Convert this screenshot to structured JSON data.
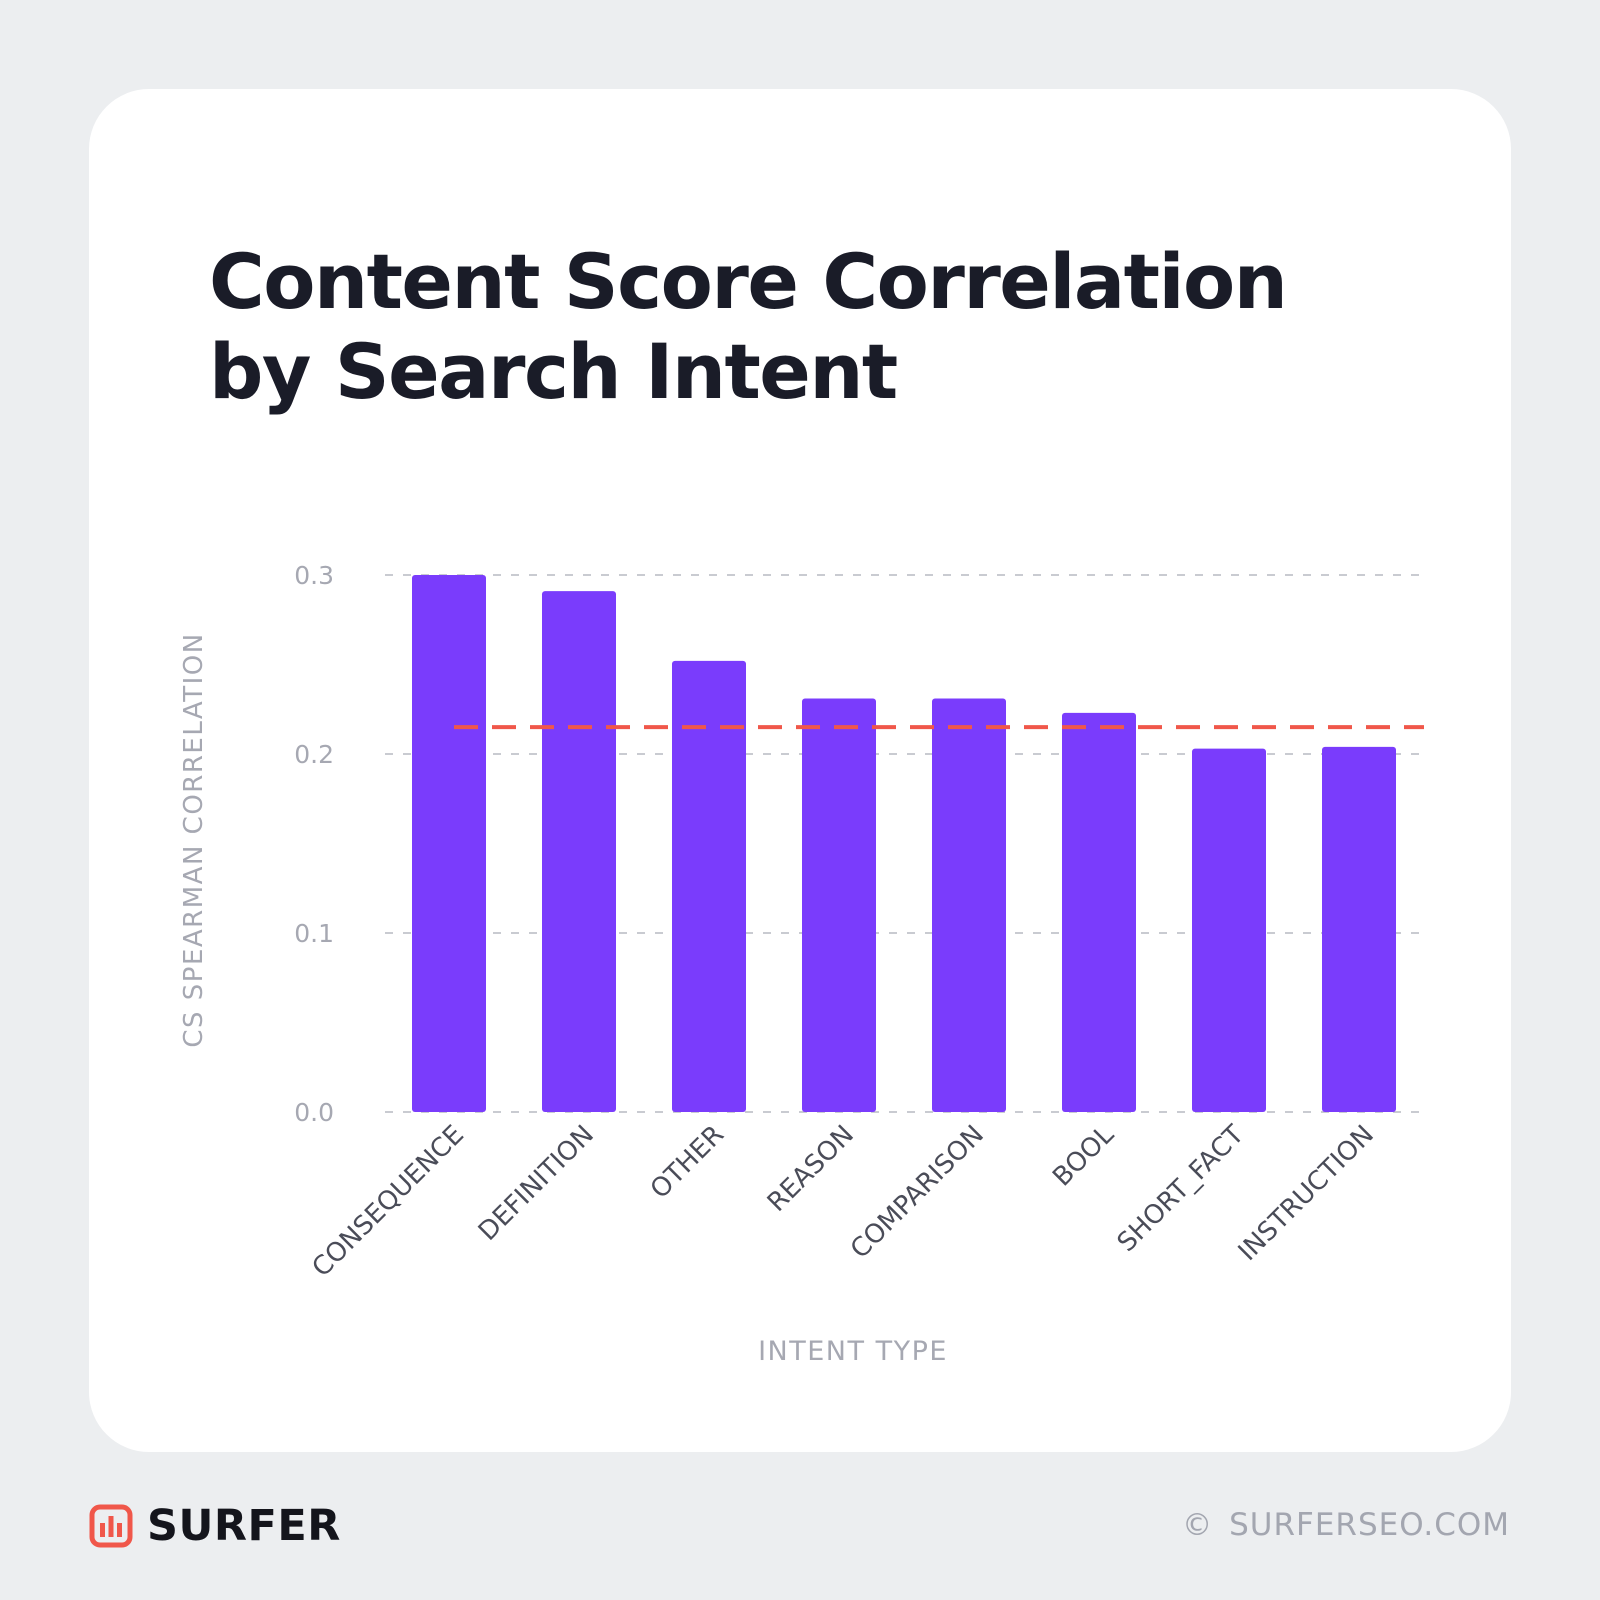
{
  "brand": {
    "name": "SURFER",
    "copyright_symbol": "©",
    "website": "SURFERSEO.COM",
    "accent_color": "#f0574a"
  },
  "chart_data": {
    "type": "bar",
    "title": "Content Score Correlation by Search Intent",
    "xlabel": "INTENT TYPE",
    "ylabel": "CS SPEARMAN CORRELATION",
    "categories": [
      "CONSEQUENCE",
      "DEFINITION",
      "OTHER",
      "REASON",
      "COMPARISON",
      "BOOL",
      "SHORT_FACT",
      "INSTRUCTION"
    ],
    "values": [
      0.3,
      0.291,
      0.252,
      0.231,
      0.231,
      0.223,
      0.203,
      0.204
    ],
    "ylim": [
      0.0,
      0.3
    ],
    "yticks": [
      0.0,
      0.1,
      0.2,
      0.3
    ],
    "ytick_labels": [
      "0.0",
      "0.1",
      "0.2",
      "0.3"
    ],
    "reference_line": {
      "value": 0.215,
      "style": "dashed",
      "color": "#f0574a"
    },
    "bar_color": "#7a3cfc",
    "grid": "horizontal dashed",
    "legend": "none"
  }
}
